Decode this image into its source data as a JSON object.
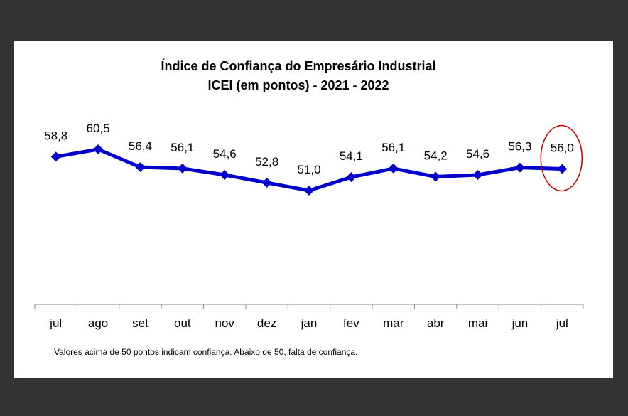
{
  "chart_data": {
    "type": "line",
    "title": "Índice de Confiança do Empresário Industrial",
    "subtitle": "ICEI (em pontos) - 2021 - 2022",
    "categories": [
      "jul",
      "ago",
      "set",
      "out",
      "nov",
      "dez",
      "jan",
      "fev",
      "mar",
      "abr",
      "mai",
      "jun",
      "jul"
    ],
    "data_labels": [
      "58,8",
      "60,5",
      "56,4",
      "56,1",
      "54,6",
      "52,8",
      "51,0",
      "54,1",
      "56,1",
      "54,2",
      "54,6",
      "56,3",
      "56,0"
    ],
    "series": [
      {
        "values": [
          58.8,
          60.5,
          56.4,
          56.1,
          54.6,
          52.8,
          51.0,
          54.1,
          56.1,
          54.2,
          54.6,
          56.3,
          56.0
        ]
      }
    ],
    "line_color": "#0000cc",
    "highlight_color": "#c00000",
    "highlighted_point": "jul (last)",
    "grid": false,
    "legend": "none",
    "xlabel": "",
    "ylabel": "",
    "note": "Valores acima de 50 pontos indicam confiança. Abaixo de 50, falta de confiança."
  }
}
